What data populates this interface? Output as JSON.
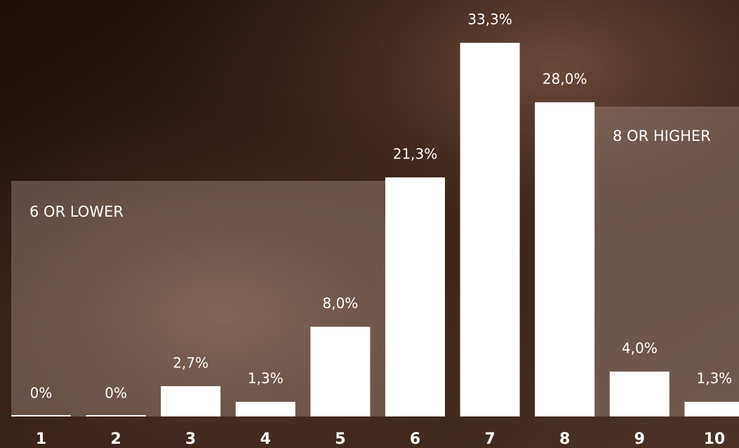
{
  "chart_data": {
    "type": "bar",
    "categories": [
      "1",
      "2",
      "3",
      "4",
      "5",
      "6",
      "7",
      "8",
      "9",
      "10"
    ],
    "values": [
      0,
      0,
      2.7,
      1.3,
      8.0,
      21.3,
      33.3,
      28.0,
      4.0,
      1.3
    ],
    "value_labels": [
      "0%",
      "0%",
      "2,7%",
      "1,3%",
      "8,0%",
      "21,3%",
      "33,3%",
      "28,0%",
      "4,0%",
      "1,3%"
    ],
    "color": "#ffffff",
    "annotations": [
      "6 OR LOWER",
      "8 OR HIGHER"
    ]
  }
}
